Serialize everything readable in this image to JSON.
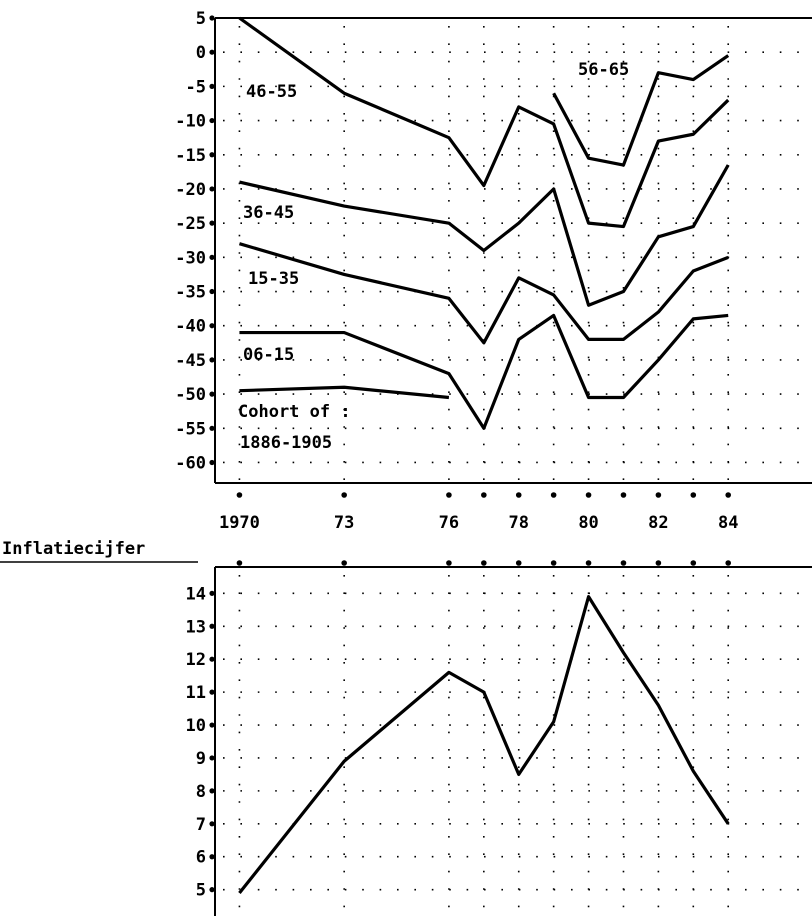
{
  "chart_data": [
    {
      "type": "line",
      "x": [
        1970,
        1973,
        1976,
        1977,
        1978,
        1979,
        1980,
        1981,
        1982,
        1983,
        1984
      ],
      "series": [
        {
          "name": "46-55",
          "color": "#000000",
          "values": [
            5,
            -6,
            -12.5,
            -19.5,
            -8,
            -10.5,
            -25,
            -25.5,
            -13,
            -12,
            -7
          ]
        },
        {
          "name": "56-65",
          "color": "#000000",
          "values": [
            null,
            null,
            null,
            null,
            null,
            -6,
            -15.5,
            -16.5,
            -3,
            -4,
            -0.5
          ]
        },
        {
          "name": "36-45",
          "color": "#000000",
          "values": [
            -19,
            -22.5,
            -25,
            -29,
            -25,
            -20,
            -37,
            -35,
            -27,
            -25.5,
            -16.5
          ]
        },
        {
          "name": "15-35",
          "color": "#000000",
          "values": [
            -28,
            -32.5,
            -36,
            -42.5,
            -33,
            -35.5,
            -42,
            -42,
            -38,
            -32,
            -30
          ]
        },
        {
          "name": "06-15",
          "color": "#000000",
          "values": [
            -41,
            -41,
            -47,
            -55,
            -42,
            -38.5,
            -50.5,
            -50.5,
            -45,
            -39,
            -38.5
          ]
        },
        {
          "name": "1886-1905",
          "color": "#000000",
          "values": [
            -49.5,
            -49,
            -50.5,
            null,
            null,
            null,
            null,
            null,
            null,
            null,
            null
          ]
        }
      ],
      "annotation": "Cohort of :",
      "xlim": [
        1969.3,
        1986.4
      ],
      "xticks": [
        1970,
        {
          "value": 1973,
          "label": "73"
        },
        {
          "value": 1976,
          "label": "76"
        },
        {
          "value": 1978,
          "label": "78"
        },
        {
          "value": 1980,
          "label": "80"
        },
        {
          "value": 1982,
          "label": "82"
        },
        {
          "value": 1984,
          "label": "84"
        }
      ],
      "xminor_ticks": [
        1977,
        1979,
        1981,
        1983
      ],
      "ylim": [
        -63,
        5
      ],
      "yticks": [
        5,
        0,
        -5,
        -10,
        -15,
        -20,
        -25,
        -30,
        -35,
        -40,
        -45,
        -50,
        -55,
        -60
      ],
      "grid": true
    },
    {
      "type": "line",
      "title": "Inflatiecijfer",
      "x": [
        1970,
        1973,
        1976,
        1977,
        1978,
        1979,
        1980,
        1981,
        1982,
        1983,
        1984
      ],
      "series": [
        {
          "name": "Inflatiecijfer",
          "color": "#000000",
          "values": [
            4.9,
            8.9,
            11.6,
            11.0,
            8.5,
            10.1,
            13.9,
            12.2,
            10.6,
            8.6,
            7.0
          ]
        }
      ],
      "xlim": [
        1969.3,
        1986.4
      ],
      "xticks": [
        1970,
        1973,
        1976,
        1977,
        1978,
        1979,
        1980,
        1981,
        1982,
        1983,
        1984
      ],
      "xtick_labels": false,
      "ylim": [
        4.2,
        14.8
      ],
      "yticks": [
        14,
        13,
        12,
        11,
        10,
        9,
        8,
        7,
        6,
        5
      ],
      "grid": true
    }
  ]
}
